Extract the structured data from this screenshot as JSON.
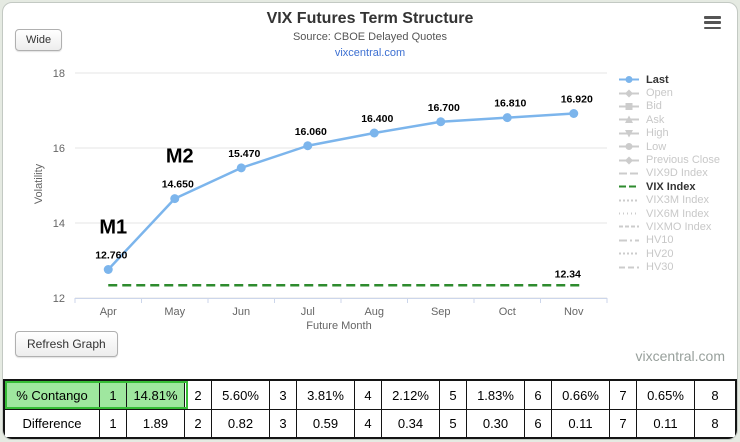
{
  "header": {
    "title": "VIX Futures Term Structure",
    "subtitle": "Source: CBOE Delayed Quotes",
    "link": "vixcentral.com",
    "wide_button_label": "Wide"
  },
  "chart_data": {
    "type": "line",
    "title": "VIX Futures Term Structure",
    "xlabel": "Future Month",
    "ylabel": "Volatility",
    "ylim": [
      12,
      18
    ],
    "yticks": [
      12,
      14,
      16,
      18
    ],
    "categories": [
      "Apr",
      "May",
      "Jun",
      "Jul",
      "Aug",
      "Sep",
      "Oct",
      "Nov"
    ],
    "grid": true,
    "legend_position": "right",
    "series": [
      {
        "name": "Last",
        "type": "line",
        "color": "#7cb5ec",
        "values": [
          12.76,
          14.65,
          15.47,
          16.06,
          16.4,
          16.7,
          16.81,
          16.92
        ],
        "data_labels": [
          "12.760",
          "14.650",
          "15.470",
          "16.060",
          "16.400",
          "16.700",
          "16.810",
          "16.920"
        ]
      },
      {
        "name": "VIX Index",
        "type": "hline",
        "color": "#2e8b2e",
        "dash": "9,5",
        "value": 12.34,
        "data_label": "12.34"
      }
    ],
    "annotations": [
      {
        "text": "M1",
        "category_index": 0
      },
      {
        "text": "M2",
        "category_index": 1
      }
    ]
  },
  "legend": {
    "items": [
      {
        "label": "Last",
        "color": "#7cb5ec",
        "active": true,
        "marker": "circle",
        "dash": ""
      },
      {
        "label": "Open",
        "color": "#cccccc",
        "active": false,
        "marker": "diamond",
        "dash": ""
      },
      {
        "label": "Bid",
        "color": "#cccccc",
        "active": false,
        "marker": "square",
        "dash": ""
      },
      {
        "label": "Ask",
        "color": "#cccccc",
        "active": false,
        "marker": "triangle",
        "dash": ""
      },
      {
        "label": "High",
        "color": "#cccccc",
        "active": false,
        "marker": "triangle-down",
        "dash": ""
      },
      {
        "label": "Low",
        "color": "#cccccc",
        "active": false,
        "marker": "circle",
        "dash": ""
      },
      {
        "label": "Previous Close",
        "color": "#cccccc",
        "active": false,
        "marker": "diamond",
        "dash": ""
      },
      {
        "label": "VIX9D Index",
        "color": "#cccccc",
        "active": false,
        "marker": "",
        "dash": "8,3"
      },
      {
        "label": "VIX Index",
        "color": "#2e8b2e",
        "active": true,
        "marker": "",
        "dash": "7,3"
      },
      {
        "label": "VIX3M Index",
        "color": "#cccccc",
        "active": false,
        "marker": "",
        "dash": "2,2"
      },
      {
        "label": "VIX6M Index",
        "color": "#cccccc",
        "active": false,
        "marker": "",
        "dash": "1,3"
      },
      {
        "label": "VIXMO Index",
        "color": "#cccccc",
        "active": false,
        "marker": "",
        "dash": "4,2"
      },
      {
        "label": "HV10",
        "color": "#cccccc",
        "active": false,
        "marker": "",
        "dash": "8,3,2,3"
      },
      {
        "label": "HV20",
        "color": "#cccccc",
        "active": false,
        "marker": "",
        "dash": "2,2"
      },
      {
        "label": "HV30",
        "color": "#cccccc",
        "active": false,
        "marker": "",
        "dash": "6,3"
      }
    ]
  },
  "footer": {
    "refresh_button_label": "Refresh Graph",
    "watermark": "vixcentral.com"
  },
  "table": {
    "rows": [
      {
        "cells": [
          "% Contango",
          "1",
          "14.81%",
          "2",
          "5.60%",
          "3",
          "3.81%",
          "4",
          "2.12%",
          "5",
          "1.83%",
          "6",
          "0.66%",
          "7",
          "0.65%",
          "8"
        ],
        "highlight_cells": [
          0,
          1,
          2
        ]
      },
      {
        "cells": [
          "Difference",
          "1",
          "1.89",
          "2",
          "0.82",
          "3",
          "0.59",
          "4",
          "0.34",
          "5",
          "0.30",
          "6",
          "0.11",
          "7",
          "0.11",
          "8"
        ],
        "highlight_cells": []
      }
    ]
  }
}
